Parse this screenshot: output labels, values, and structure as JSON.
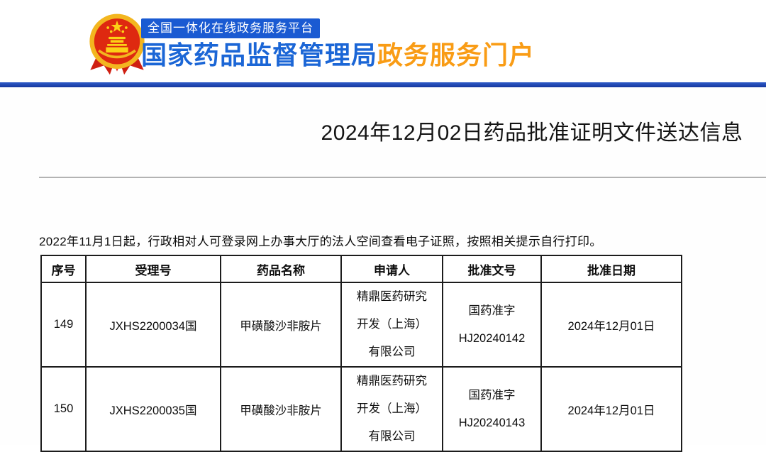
{
  "header": {
    "badge": "全国一体化在线政务服务平台",
    "site_name": "国家药品监督管理局",
    "portal_name": "政务服务门户",
    "colors": {
      "badge_bg": "#1a5ad2",
      "site_blue": "#1b66d6",
      "portal_orange": "#f99c15",
      "bar_blue": "#16379e",
      "emblem_red": "#de2910",
      "emblem_gold": "#f3b61f"
    }
  },
  "page": {
    "title": "2024年12月02日药品批准证明文件送达信息",
    "notice": "2022年11月1日起，行政相对人可登录网上办事大厅的法人空间查看电子证照，按照相关提示自行打印。"
  },
  "table": {
    "headers": [
      "序号",
      "受理号",
      "药品名称",
      "申请人",
      "批准文号",
      "批准日期"
    ],
    "rows": [
      {
        "seq": "149",
        "acceptance_no": "JXHS2200034国",
        "drug_name": "甲磺酸沙非胺片",
        "applicant_lines": [
          "精鼎医药研究",
          "开发（上海）",
          "有限公司"
        ],
        "approval_no_lines": [
          "国药准字",
          "HJ20240142"
        ],
        "approval_date": "2024年12月01日"
      },
      {
        "seq": "150",
        "acceptance_no": "JXHS2200035国",
        "drug_name": "甲磺酸沙非胺片",
        "applicant_lines": [
          "精鼎医药研究",
          "开发（上海）",
          "有限公司"
        ],
        "approval_no_lines": [
          "国药准字",
          "HJ20240143"
        ],
        "approval_date": "2024年12月01日"
      }
    ]
  }
}
